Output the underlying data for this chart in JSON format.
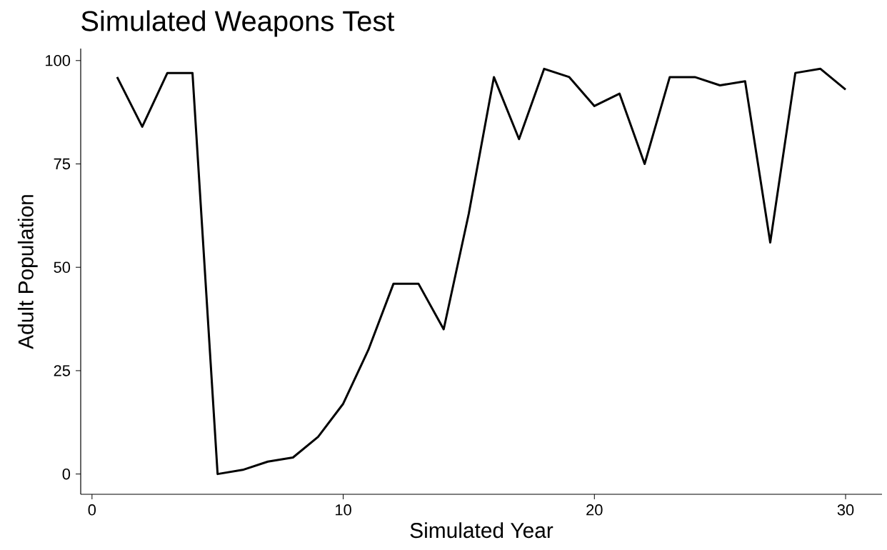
{
  "chart_data": {
    "type": "line",
    "title": "Simulated Weapons Test",
    "xlabel": "Simulated Year",
    "ylabel": "Adult Population",
    "x": [
      1,
      2,
      3,
      4,
      5,
      6,
      7,
      8,
      9,
      10,
      11,
      12,
      13,
      14,
      15,
      16,
      17,
      18,
      19,
      20,
      21,
      22,
      23,
      24,
      25,
      26,
      27,
      28,
      29,
      30
    ],
    "series": [
      {
        "color": "#000000",
        "values": [
          96,
          84,
          97,
          97,
          0,
          1,
          3,
          4,
          9,
          17,
          30,
          46,
          46,
          35,
          63,
          96,
          81,
          98,
          96,
          89,
          92,
          75,
          96,
          96,
          94,
          95,
          56,
          97,
          98,
          93
        ]
      }
    ],
    "xlim": [
      -0.45,
      31.45
    ],
    "ylim": [
      -4.9,
      102.9
    ],
    "xticks": [
      0,
      10,
      20,
      30
    ],
    "yticks": [
      0,
      25,
      50,
      75,
      100
    ]
  }
}
